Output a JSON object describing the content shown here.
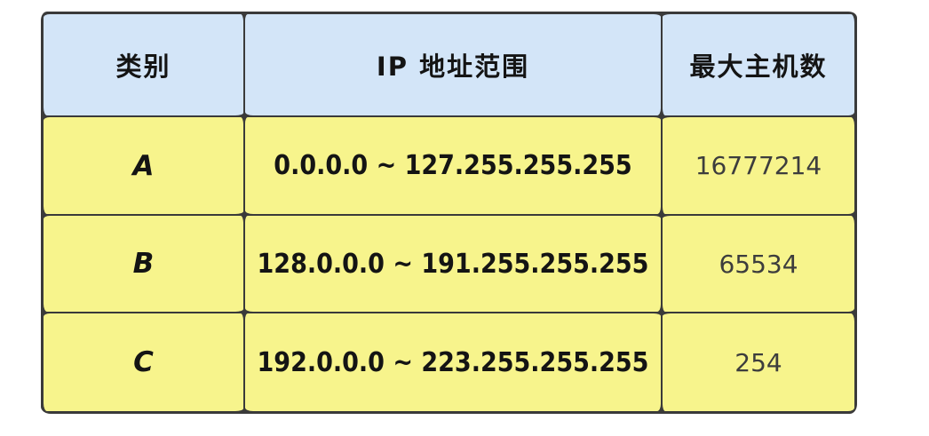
{
  "chart_data": {
    "type": "table",
    "title": "",
    "columns": [
      "类别",
      "IP 地址范围",
      "最大主机数"
    ],
    "rows": [
      [
        "A",
        "0.0.0.0 ~ 127.255.255.255",
        "16777214"
      ],
      [
        "B",
        "128.0.0.0 ~ 191.255.255.255",
        "65534"
      ],
      [
        "C",
        "192.0.0.0 ~ 223.255.255.255",
        "254"
      ]
    ],
    "style": "hand-drawn sketch table, header row light blue, data rows yellow, dark wavy grid lines"
  },
  "colors": {
    "page_bg": "#ffffff",
    "header_bg": "#d3e5f8",
    "row_bg": "#f7f48c",
    "grid_line": "#3a3a3a",
    "hosts_text": "#3d3d3d"
  }
}
